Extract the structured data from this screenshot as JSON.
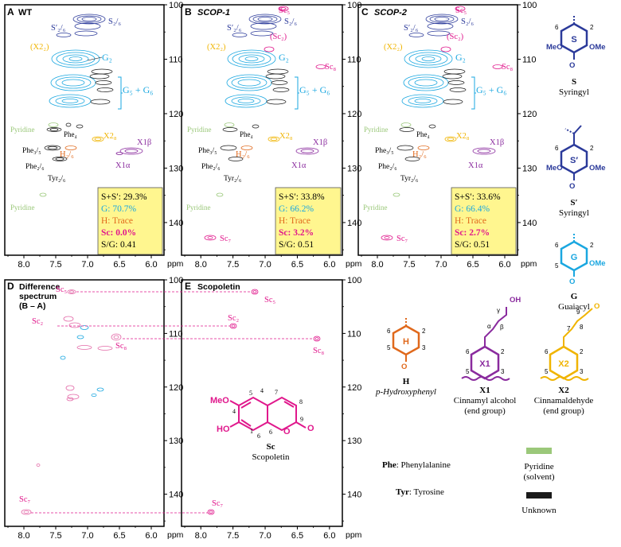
{
  "axis_unit": "ppm",
  "x_ticks": [
    "8.0",
    "7.5",
    "7.0",
    "6.5",
    "6.0"
  ],
  "y_ticks": [
    "100",
    "110",
    "120",
    "130",
    "140"
  ],
  "panels": {
    "A": {
      "letter": "A",
      "title": "WT"
    },
    "B": {
      "letter": "B",
      "title": "SCOP-1"
    },
    "C": {
      "letter": "C",
      "title": "SCOP-2"
    },
    "D": {
      "letter": "D",
      "title_lines": [
        "Difference",
        "spectrum",
        "(B – A)"
      ]
    },
    "E": {
      "letter": "E",
      "title": "Scopoletin"
    }
  },
  "peak_labels": {
    "S26": "S₂/₆",
    "Sp26": "S′₂/₆",
    "X22": "(X2₂)",
    "G2": "G₂",
    "G56": "G₅ + G₆",
    "Pyridine": "Pyridine",
    "Phe4": "Phe₄",
    "X28": "X2₈",
    "X1b": "X1β",
    "X1a": "X1α",
    "Phe35": "Phe₃/₅",
    "H26": "H₂/₆",
    "Phe26": "Phe₂/₆",
    "Tyr26": "Tyr₂/₆",
    "Sc5": "Sc₅",
    "Sc2": "(Sc₂)",
    "Sc8": "Sc₈",
    "Sc7": "Sc₇",
    "Sc2b": "Sc₂"
  },
  "summaries": {
    "A": {
      "ss": "S+S′: 29.3%",
      "g": "G: 70.7%",
      "h": "H: Trace",
      "sc": "Sc: 0.0%",
      "sg": "S/G: 0.41"
    },
    "B": {
      "ss": "S+S′: 33.8%",
      "g": "G: 66.2%",
      "h": "H: Trace",
      "sc": "Sc: 3.2%",
      "sg": "S/G: 0.51"
    },
    "C": {
      "ss": "S+S′: 33.6%",
      "g": "G: 66.4%",
      "h": "H: Trace",
      "sc": "Sc: 2.7%",
      "sg": "S/G: 0.51"
    }
  },
  "structures": {
    "S": {
      "code": "S",
      "name": "Syringyl"
    },
    "Sp": {
      "code": "S′",
      "name": "Syringyl"
    },
    "G": {
      "code": "G",
      "name": "Guaiacyl"
    },
    "H": {
      "code": "H",
      "name": "p-Hydroxyphenyl"
    },
    "X1": {
      "code": "X1",
      "name1": "Cinnamyl alcohol",
      "name2": "(end group)"
    },
    "X2": {
      "code": "X2",
      "name1": "Cinnamaldehyde",
      "name2": "(end group)"
    },
    "Sc": {
      "code": "Sc",
      "name": "Scopoletin"
    }
  },
  "legend": {
    "phe_abbr": "Phe",
    "phe_name": ": Phenylalanine",
    "tyr_abbr": "Tyr",
    "tyr_name": ": Tyrosine",
    "pyridine_1": "Pyridine",
    "pyridine_2": "(solvent)",
    "unknown": "Unknown"
  },
  "colors": {
    "S": "#2b3a9a",
    "G": "#1aa7e0",
    "H": "#e0691c",
    "X1": "#8a2b9e",
    "X2": "#f0b400",
    "Sc": "#e0188c",
    "Pyridine": "#9bc87a",
    "Unknown": "#1a1a1a",
    "summary_bg": "#fff68f"
  }
}
